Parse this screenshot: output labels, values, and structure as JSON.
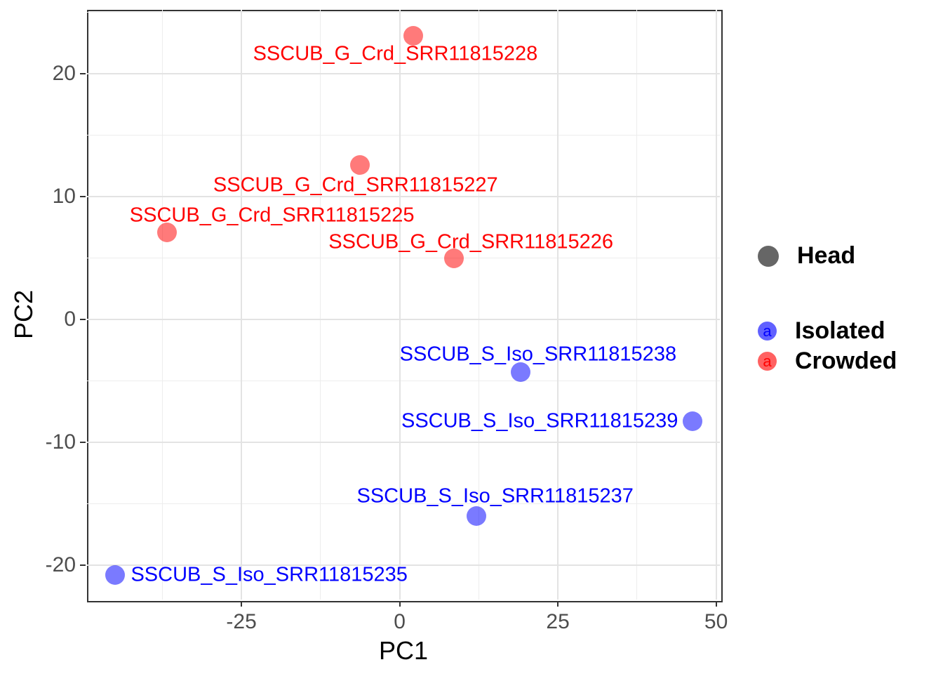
{
  "chart_data": {
    "type": "scatter",
    "title": "",
    "xlabel": "PC1",
    "ylabel": "PC2",
    "xlim": [
      -49.4,
      50.6
    ],
    "ylim": [
      -22.8,
      25.2
    ],
    "x_ticks": [
      -25,
      0,
      25,
      50
    ],
    "y_ticks": [
      -20,
      -10,
      0,
      10,
      20
    ],
    "x_minor_gridlines": [
      -37.5,
      -12.5,
      12.5,
      37.5
    ],
    "y_minor_gridlines": [
      -15,
      -5,
      5,
      15,
      25
    ],
    "grid": true,
    "legend_position": "right",
    "colors": {
      "crowded_text": "#ff0000",
      "crowded_fill": "rgba(255,0,0,0.52)",
      "isolated_text": "#0000ff",
      "isolated_fill": "rgba(0,0,255,0.52)",
      "head_key": "#666666",
      "tick_text": "#4d4d4d",
      "panel_border": "#333333"
    },
    "series": [
      {
        "name": "Crowded",
        "color": "#ff0000",
        "fill": "rgba(255,0,0,0.52)",
        "points": [
          {
            "label": "SSCUB_G_Crd_SRR11815228",
            "x": 2.2,
            "y": 23.1,
            "label_dx": -26,
            "label_dy": 26
          },
          {
            "label": "SSCUB_G_Crd_SRR11815227",
            "x": -6.3,
            "y": 12.6,
            "label_dx": -6,
            "label_dy": 29
          },
          {
            "label": "SSCUB_G_Crd_SRR11815225",
            "x": -36.8,
            "y": 7.1,
            "label_dx": 150,
            "label_dy": -24
          },
          {
            "label": "SSCUB_G_Crd_SRR11815226",
            "x": 8.6,
            "y": 5.0,
            "label_dx": 24,
            "label_dy": -23
          }
        ]
      },
      {
        "name": "Isolated",
        "color": "#0000ff",
        "fill": "rgba(0,0,255,0.52)",
        "points": [
          {
            "label": "SSCUB_S_Iso_SRR11815238",
            "x": 19.1,
            "y": -4.3,
            "label_dx": 25,
            "label_dy": -25
          },
          {
            "label": "SSCUB_S_Iso_SRR11815239",
            "x": 46.3,
            "y": -8.3,
            "label_dx": -218,
            "label_dy": 0
          },
          {
            "label": "SSCUB_S_Iso_SRR11815237",
            "x": 12.1,
            "y": -16.0,
            "label_dx": 27,
            "label_dy": -28
          },
          {
            "label": "SSCUB_S_Iso_SRR11815235",
            "x": -45.0,
            "y": -20.8,
            "label_dx": 220,
            "label_dy": 0
          }
        ]
      }
    ],
    "legend": [
      {
        "label": "Head",
        "key_type": "dot",
        "key_color": "#666666"
      },
      {
        "label": "Isolated",
        "key_type": "a",
        "key_glyph": "a",
        "key_fill": "rgba(0,0,255,0.62)",
        "key_text_color": "#0000ff"
      },
      {
        "label": "Crowded",
        "key_type": "a",
        "key_glyph": "a",
        "key_fill": "rgba(255,0,0,0.62)",
        "key_text_color": "#ff0000"
      }
    ]
  }
}
